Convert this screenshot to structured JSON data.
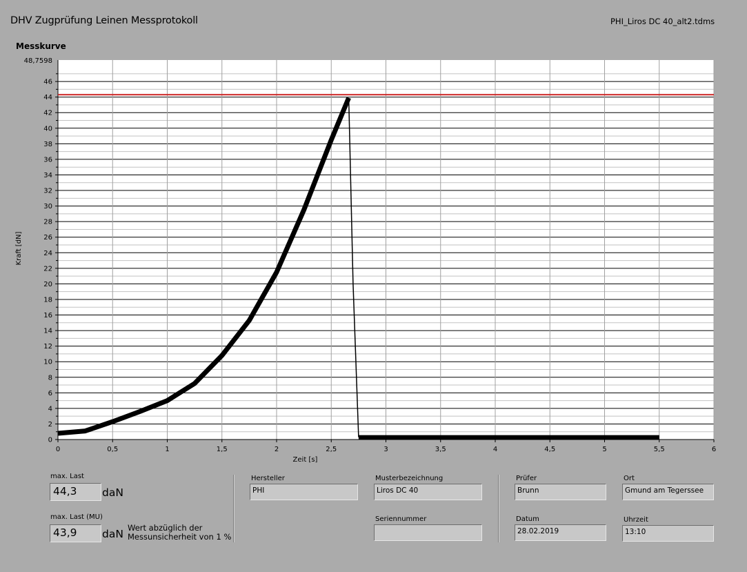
{
  "header": {
    "title": "DHV Zugprüfung Leinen Messprotokoll",
    "filename": "PHI_Liros DC 40_alt2.tdms"
  },
  "chart_label": "Messkurve",
  "chart_data": {
    "type": "line",
    "xlabel": "Zeit [s]",
    "ylabel": "Kraft [dN]",
    "xlim": [
      0,
      6
    ],
    "ylim": [
      0,
      48.7598
    ],
    "y_top_label": "48,7598",
    "x_ticks": [
      {
        "value": 0,
        "label": "0"
      },
      {
        "value": 0.5,
        "label": "0,5"
      },
      {
        "value": 1,
        "label": "1"
      },
      {
        "value": 1.5,
        "label": "1,5"
      },
      {
        "value": 2,
        "label": "2"
      },
      {
        "value": 2.5,
        "label": "2,5"
      },
      {
        "value": 3,
        "label": "3"
      },
      {
        "value": 3.5,
        "label": "3,5"
      },
      {
        "value": 4,
        "label": "4"
      },
      {
        "value": 4.5,
        "label": "4,5"
      },
      {
        "value": 5,
        "label": "5"
      },
      {
        "value": 5.5,
        "label": "5,5"
      },
      {
        "value": 6,
        "label": "6"
      }
    ],
    "y_ticks": [
      0,
      2,
      4,
      6,
      8,
      10,
      12,
      14,
      16,
      18,
      20,
      22,
      24,
      26,
      28,
      30,
      32,
      34,
      36,
      38,
      40,
      42,
      44,
      46
    ],
    "grid": true,
    "series": [
      {
        "color": "#000000",
        "x": [
          0,
          0.25,
          0.5,
          0.75,
          1.0,
          1.25,
          1.5,
          1.75,
          2.0,
          2.25,
          2.5,
          2.66,
          2.7,
          2.75,
          3.0,
          3.5,
          4.0,
          4.5,
          5.0,
          5.5
        ],
        "y": [
          0.8,
          1.1,
          2.3,
          3.6,
          5.0,
          7.2,
          10.8,
          15.3,
          21.5,
          29.5,
          38.5,
          43.9,
          20,
          0.3,
          0.3,
          0.3,
          0.3,
          0.3,
          0.3,
          0.3
        ]
      },
      {
        "color": "#cc2222",
        "x": [
          0,
          6
        ],
        "y": [
          44.3,
          44.3
        ]
      }
    ]
  },
  "results": {
    "max_last_label": "max. Last",
    "max_last_value": "44,3",
    "max_last_unit": "daN",
    "max_last_mu_label": "max. Last (MU)",
    "max_last_mu_value": "43,9",
    "max_last_mu_unit": "daN",
    "note_line1": "Wert abzüglich der",
    "note_line2": "Messunsicherheit von 1 %"
  },
  "info": {
    "hersteller_label": "Hersteller",
    "hersteller_value": "PHI",
    "muster_label": "Musterbezeichnung",
    "muster_value": "Liros DC 40",
    "serien_label": "Seriennummer",
    "serien_value": "",
    "pruefer_label": "Prüfer",
    "pruefer_value": "Brunn",
    "ort_label": "Ort",
    "ort_value": "Gmund am Tegerssee",
    "datum_label": "Datum",
    "datum_value": "28.02.2019",
    "uhrzeit_label": "Uhrzeit",
    "uhrzeit_value": "13:10"
  }
}
